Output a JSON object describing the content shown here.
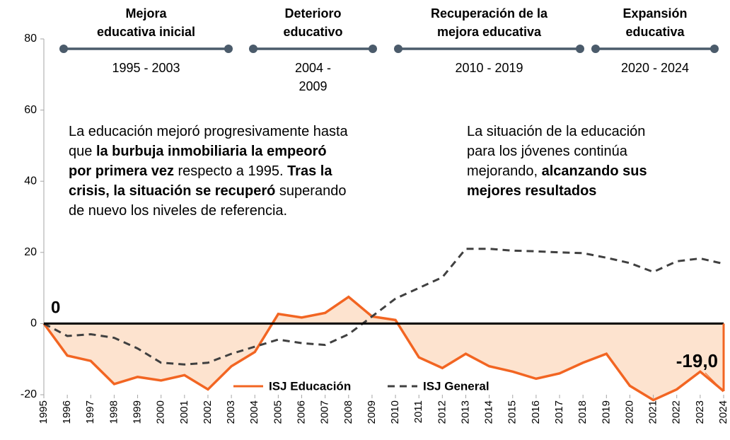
{
  "chart_data": {
    "type": "line",
    "categories": [
      "1995",
      "1996",
      "1997",
      "1998",
      "1999",
      "2000",
      "2001",
      "2002",
      "2003",
      "2004",
      "2005",
      "2006",
      "2007",
      "2008",
      "2009",
      "2010",
      "2011",
      "2012",
      "2013",
      "2014",
      "2015",
      "2016",
      "2017",
      "2018",
      "2019",
      "2020",
      "2021",
      "2022",
      "2023",
      "2024"
    ],
    "series": [
      {
        "name": "ISJ Educación",
        "color": "#f26522",
        "area_color": "#fde3cf",
        "dash": false,
        "values": [
          0,
          -9,
          -10.5,
          -17,
          -15,
          -16,
          -14.5,
          -18.5,
          -12,
          -8,
          2.7,
          1.7,
          3,
          7.5,
          2,
          1,
          -9.5,
          -12.5,
          -8.5,
          -12,
          -13.5,
          -15.5,
          -14,
          -11,
          -8.5,
          -17.5,
          -21.5,
          -18.5,
          -13.5,
          -19.0
        ],
        "value_labels": [
          null,
          null,
          null,
          null,
          null,
          null,
          null,
          null,
          null,
          null,
          null,
          null,
          null,
          null,
          null,
          null,
          null,
          null,
          null,
          null,
          null,
          null,
          null,
          null,
          null,
          null,
          null,
          null,
          null,
          "-19,0"
        ]
      },
      {
        "name": "ISJ General",
        "color": "#404040",
        "dash": true,
        "values": [
          0,
          -3.5,
          -3,
          -4,
          -7,
          -11,
          -11.5,
          -11,
          -8.5,
          -6.5,
          -4.5,
          -5.5,
          -6,
          -3,
          2,
          7,
          10,
          13,
          21,
          21,
          20.5,
          20.3,
          20,
          19.8,
          18.5,
          17,
          14.5,
          17.5,
          18.3,
          16.8
        ]
      }
    ],
    "ylim": [
      -20,
      80
    ],
    "yticks": [
      -20,
      0,
      20,
      40,
      60,
      80
    ],
    "zero_label": "0",
    "periods": [
      {
        "title": [
          "Mejora",
          "educativa inicial"
        ],
        "years": [
          "1995 - 2003"
        ]
      },
      {
        "title": [
          "Deterioro",
          "educativo"
        ],
        "years": [
          "2004 -",
          "2009"
        ]
      },
      {
        "title": [
          "Recuperación de la",
          "mejora educativa"
        ],
        "years": [
          "2010 - 2019"
        ]
      },
      {
        "title": [
          "Expansión",
          "educativa"
        ],
        "years": [
          "2020 - 2024"
        ]
      }
    ],
    "annotations": [
      {
        "lines": [
          [
            {
              "text": "La educación mejoró progresivamente hasta",
              "bold": false
            }
          ],
          [
            {
              "text": "que ",
              "bold": false
            },
            {
              "text": "la burbuja inmobiliaria la empeoró",
              "bold": true
            }
          ],
          [
            {
              "text": "por primera vez",
              "bold": true
            },
            {
              "text": " respecto a 1995. ",
              "bold": false
            },
            {
              "text": "Tras la",
              "bold": true
            }
          ],
          [
            {
              "text": "crisis, la situación se recuperó",
              "bold": true
            },
            {
              "text": " superando",
              "bold": false
            }
          ],
          [
            {
              "text": "de nuevo los niveles de referencia.",
              "bold": false
            }
          ]
        ]
      },
      {
        "lines": [
          [
            {
              "text": "La situación de la educación",
              "bold": false
            }
          ],
          [
            {
              "text": "para los jóvenes continúa",
              "bold": false
            }
          ],
          [
            {
              "text": "mejorando, ",
              "bold": false
            },
            {
              "text": "alcanzando sus",
              "bold": true
            }
          ],
          [
            {
              "text": "mejores resultados",
              "bold": true
            }
          ]
        ]
      }
    ]
  }
}
